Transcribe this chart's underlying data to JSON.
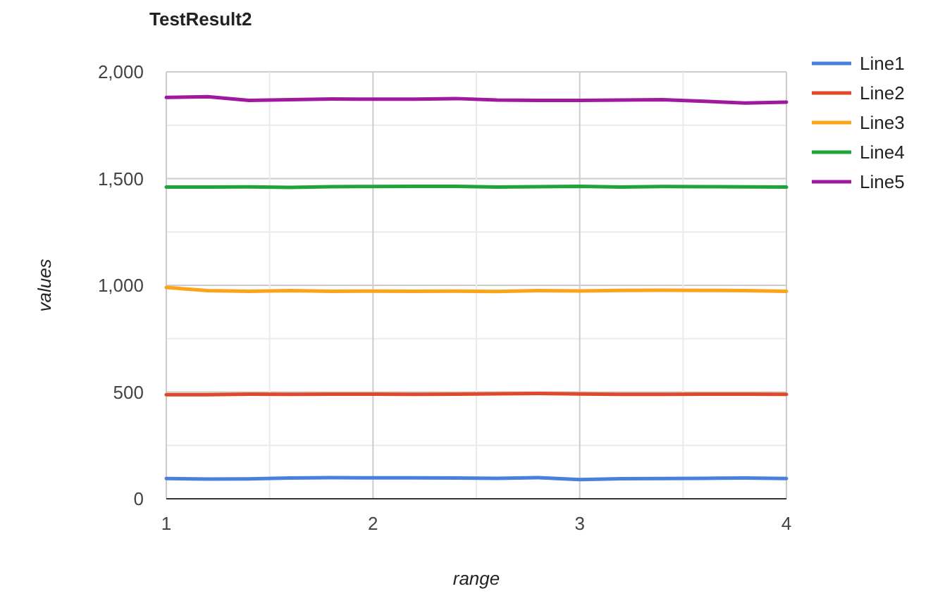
{
  "chart_data": {
    "type": "line",
    "title": "TestResult2",
    "xlabel": "range",
    "ylabel": "values",
    "x": [
      1,
      1.2,
      1.4,
      1.6,
      1.8,
      2,
      2.2,
      2.4,
      2.6,
      2.8,
      3,
      3.2,
      3.4,
      3.6,
      3.8,
      4
    ],
    "series": [
      {
        "name": "Line1",
        "color": "#4a7fdc",
        "values": [
          95,
          92,
          93,
          97,
          99,
          98,
          98,
          97,
          96,
          99,
          90,
          94,
          95,
          96,
          97,
          95
        ]
      },
      {
        "name": "Line2",
        "color": "#e0482a",
        "values": [
          488,
          488,
          490,
          489,
          490,
          490,
          489,
          490,
          492,
          493,
          491,
          489,
          489,
          490,
          490,
          489
        ]
      },
      {
        "name": "Line3",
        "color": "#fba41a",
        "values": [
          990,
          975,
          972,
          975,
          972,
          973,
          972,
          973,
          971,
          975,
          974,
          976,
          977,
          976,
          975,
          972
        ]
      },
      {
        "name": "Line4",
        "color": "#1fa33a",
        "values": [
          1460,
          1460,
          1461,
          1459,
          1462,
          1463,
          1464,
          1464,
          1460,
          1462,
          1464,
          1460,
          1463,
          1462,
          1461,
          1460
        ]
      },
      {
        "name": "Line5",
        "color": "#a0189e",
        "values": [
          1880,
          1884,
          1866,
          1870,
          1873,
          1872,
          1872,
          1875,
          1868,
          1866,
          1866,
          1868,
          1870,
          1862,
          1854,
          1858
        ]
      }
    ],
    "xlim": [
      1,
      4
    ],
    "xticks": [
      1,
      {
        "value": 1.5,
        "label": null
      },
      2,
      {
        "value": 2.5,
        "label": null
      },
      3,
      {
        "value": 3.5,
        "label": null
      },
      4
    ],
    "ylim": [
      0,
      2000
    ],
    "yticks": [
      0,
      {
        "value": 250,
        "label": null
      },
      500,
      {
        "value": 750,
        "label": null
      },
      {
        "value": 1000,
        "label": "1,000"
      },
      {
        "value": 1250,
        "label": null
      },
      {
        "value": 1500,
        "label": "1,500"
      },
      {
        "value": 1750,
        "label": null
      },
      {
        "value": 2000,
        "label": "2,000"
      }
    ],
    "grid": true,
    "legend": "right",
    "marker": "none",
    "line_style": "solid"
  }
}
